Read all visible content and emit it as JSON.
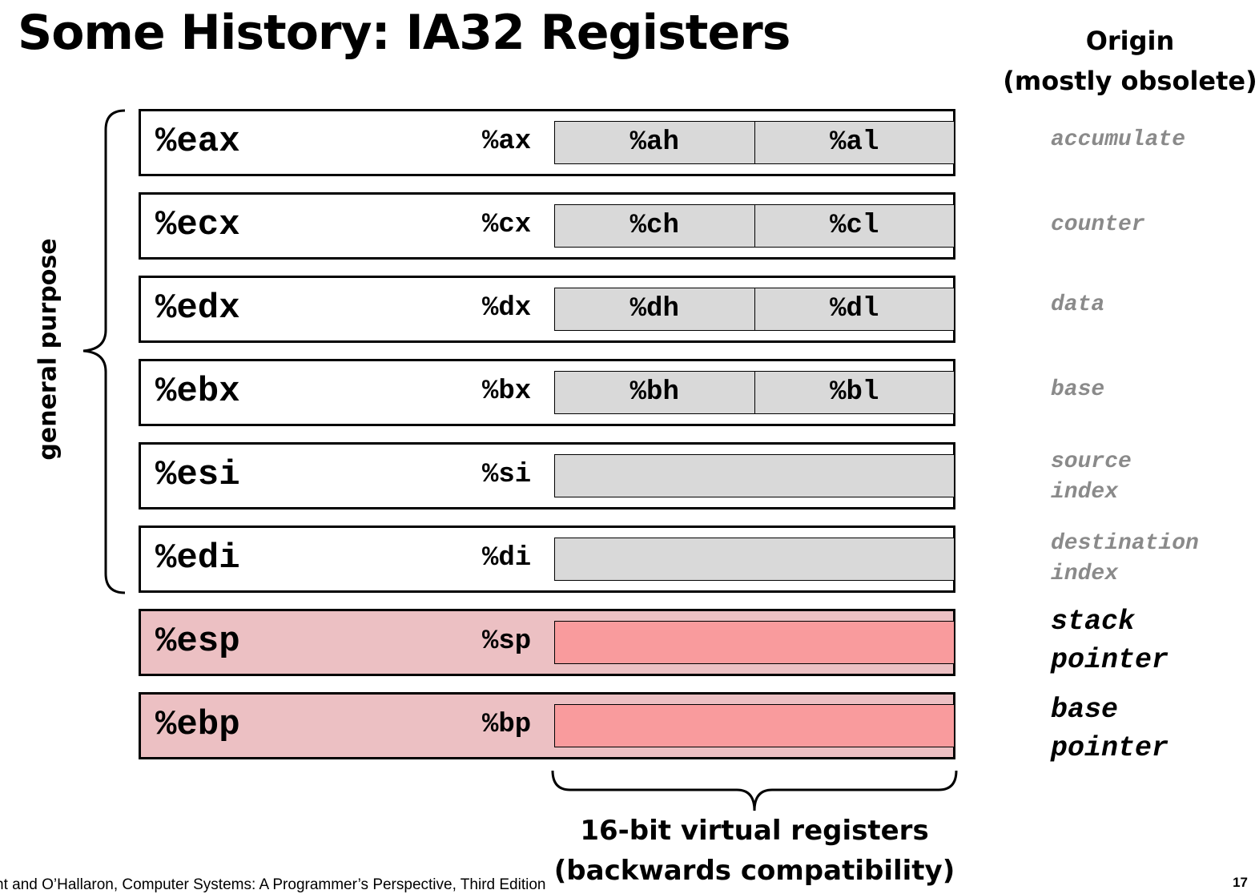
{
  "title": "Some History: IA32 Registers",
  "origin_header": [
    "Origin",
    "(mostly obsolete)"
  ],
  "group_label": "general purpose",
  "registers": [
    {
      "name32": "%eax",
      "name16": "%ax",
      "high8": "%ah",
      "low8": "%al",
      "origin": [
        "accumulate"
      ],
      "kind": "general"
    },
    {
      "name32": "%ecx",
      "name16": "%cx",
      "high8": "%ch",
      "low8": "%cl",
      "origin": [
        "counter"
      ],
      "kind": "general"
    },
    {
      "name32": "%edx",
      "name16": "%dx",
      "high8": "%dh",
      "low8": "%dl",
      "origin": [
        "data"
      ],
      "kind": "general"
    },
    {
      "name32": "%ebx",
      "name16": "%bx",
      "high8": "%bh",
      "low8": "%bl",
      "origin": [
        "base"
      ],
      "kind": "general"
    },
    {
      "name32": "%esi",
      "name16": "%si",
      "origin": [
        "source",
        "index"
      ],
      "kind": "general"
    },
    {
      "name32": "%edi",
      "name16": "%di",
      "origin": [
        "destination",
        "index"
      ],
      "kind": "general"
    },
    {
      "name32": "%esp",
      "name16": "%sp",
      "origin": [
        "stack",
        "pointer"
      ],
      "kind": "special"
    },
    {
      "name32": "%ebp",
      "name16": "%bp",
      "origin": [
        "base",
        "pointer"
      ],
      "kind": "special"
    }
  ],
  "virtual_label": [
    "16-bit virtual registers",
    "(backwards compatibility)"
  ],
  "footer": "nt and O’Hallaron, Computer Systems: A Programmer’s Perspective, Third Edition",
  "page_number": "17",
  "colors": {
    "register_fill": "#ffffff",
    "subregister_fill": "#d9d9d9",
    "special_register_fill": "#ecc0c3",
    "special_subregister_fill": "#f99b9d",
    "obsolete_origin_text": "#8a8a8a"
  }
}
